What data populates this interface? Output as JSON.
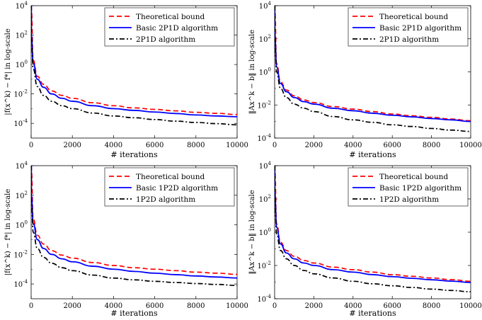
{
  "chart_data": [
    {
      "type": "line",
      "panel": "top-left",
      "xlabel": "# iterations",
      "ylabel": "|f(x^k) − f*| in log-scale",
      "xlim": [
        0,
        10000
      ],
      "ylim_log10": [
        -5,
        4
      ],
      "x_ticks": [
        0,
        2000,
        4000,
        6000,
        8000,
        10000
      ],
      "y_tick_exponents": [
        -4,
        -2,
        0,
        2,
        4
      ],
      "legend_position": "top-right",
      "series": [
        {
          "name": "Theoretical bound",
          "color": "#ff0000",
          "style": "dashed",
          "x": [
            10,
            100,
            300,
            600,
            1000,
            1500,
            2000,
            3000,
            4000,
            5000,
            6000,
            7000,
            8000,
            9000,
            10000
          ],
          "log10_y": [
            3.7,
            0.3,
            -0.8,
            -1.35,
            -1.8,
            -2.1,
            -2.3,
            -2.6,
            -2.8,
            -2.95,
            -3.05,
            -3.15,
            -3.25,
            -3.32,
            -3.4
          ]
        },
        {
          "name": "Basic 2P1D algorithm",
          "color": "#0000ff",
          "style": "solid",
          "x": [
            10,
            100,
            300,
            600,
            1000,
            1500,
            2000,
            3000,
            4000,
            5000,
            6000,
            7000,
            8000,
            9000,
            10000
          ],
          "log10_y": [
            2.0,
            0.1,
            -1.0,
            -1.55,
            -2.0,
            -2.3,
            -2.5,
            -2.8,
            -3.0,
            -3.12,
            -3.23,
            -3.33,
            -3.43,
            -3.5,
            -3.55
          ]
        },
        {
          "name": "2P1D algorithm",
          "color": "#000000",
          "style": "dashdot",
          "x": [
            10,
            100,
            300,
            600,
            1000,
            1500,
            2000,
            3000,
            4000,
            5000,
            6000,
            7000,
            8000,
            9000,
            10000
          ],
          "log10_y": [
            1.8,
            -0.3,
            -1.5,
            -2.1,
            -2.5,
            -2.8,
            -3.0,
            -3.3,
            -3.5,
            -3.62,
            -3.74,
            -3.85,
            -3.94,
            -4.02,
            -4.1
          ]
        }
      ]
    },
    {
      "type": "line",
      "panel": "top-right",
      "xlabel": "# iterations",
      "ylabel": "‖Ax^k − b‖ in log-scale",
      "xlim": [
        0,
        10000
      ],
      "ylim_log10": [
        -4,
        4
      ],
      "x_ticks": [
        0,
        2000,
        4000,
        6000,
        8000,
        10000
      ],
      "y_tick_exponents": [
        -4,
        -2,
        0,
        2,
        4
      ],
      "legend_position": "top-right",
      "series": [
        {
          "name": "Theoretical bound",
          "color": "#ff0000",
          "style": "dashed",
          "x": [
            10,
            100,
            300,
            600,
            1000,
            1500,
            2000,
            3000,
            4000,
            5000,
            6000,
            7000,
            8000,
            9000,
            10000
          ],
          "log10_y": [
            3.8,
            0.5,
            -0.6,
            -1.1,
            -1.45,
            -1.7,
            -1.85,
            -2.1,
            -2.25,
            -2.4,
            -2.55,
            -2.65,
            -2.75,
            -2.85,
            -2.95
          ]
        },
        {
          "name": "Basic 2P1D algorithm",
          "color": "#0000ff",
          "style": "solid",
          "x": [
            10,
            100,
            300,
            600,
            1000,
            1500,
            2000,
            3000,
            4000,
            5000,
            6000,
            7000,
            8000,
            9000,
            10000
          ],
          "log10_y": [
            2.3,
            0.3,
            -0.7,
            -1.2,
            -1.55,
            -1.8,
            -1.95,
            -2.2,
            -2.35,
            -2.5,
            -2.62,
            -2.72,
            -2.82,
            -2.9,
            -3.0
          ]
        },
        {
          "name": "2P1D algorithm",
          "color": "#000000",
          "style": "dashdot",
          "x": [
            10,
            100,
            300,
            600,
            1000,
            1500,
            2000,
            3000,
            4000,
            5000,
            6000,
            7000,
            8000,
            9000,
            10000
          ],
          "log10_y": [
            2.2,
            0.0,
            -1.0,
            -1.55,
            -1.95,
            -2.2,
            -2.4,
            -2.7,
            -2.9,
            -3.05,
            -3.2,
            -3.3,
            -3.42,
            -3.52,
            -3.6
          ]
        }
      ]
    },
    {
      "type": "line",
      "panel": "bottom-left",
      "xlabel": "# iterations",
      "ylabel": "|f(x^k) − f*| in log-scale",
      "xlim": [
        0,
        10000
      ],
      "ylim_log10": [
        -5,
        4
      ],
      "x_ticks": [
        0,
        2000,
        4000,
        6000,
        8000,
        10000
      ],
      "y_tick_exponents": [
        -4,
        -2,
        0,
        2,
        4
      ],
      "legend_position": "top-right",
      "series": [
        {
          "name": "Theoretical bound",
          "color": "#ff0000",
          "style": "dashed",
          "x": [
            10,
            100,
            300,
            600,
            1000,
            1500,
            2000,
            3000,
            4000,
            5000,
            6000,
            7000,
            8000,
            9000,
            10000
          ],
          "log10_y": [
            3.7,
            0.4,
            -0.7,
            -1.3,
            -1.75,
            -2.05,
            -2.25,
            -2.55,
            -2.75,
            -2.9,
            -3.0,
            -3.1,
            -3.2,
            -3.27,
            -3.35
          ]
        },
        {
          "name": "Basic 1P2D algorithm",
          "color": "#0000ff",
          "style": "solid",
          "x": [
            10,
            100,
            300,
            600,
            1000,
            1500,
            2000,
            3000,
            4000,
            5000,
            6000,
            7000,
            8000,
            9000,
            10000
          ],
          "log10_y": [
            2.0,
            0.1,
            -1.0,
            -1.6,
            -2.0,
            -2.3,
            -2.5,
            -2.8,
            -3.0,
            -3.15,
            -3.27,
            -3.37,
            -3.46,
            -3.53,
            -3.6
          ]
        },
        {
          "name": "1P2D algorithm",
          "color": "#000000",
          "style": "dashdot",
          "x": [
            10,
            100,
            300,
            600,
            1000,
            1500,
            2000,
            3000,
            4000,
            5000,
            6000,
            7000,
            8000,
            9000,
            10000
          ],
          "log10_y": [
            1.6,
            -0.5,
            -1.6,
            -2.2,
            -2.6,
            -2.9,
            -3.1,
            -3.4,
            -3.6,
            -3.72,
            -3.82,
            -3.9,
            -3.97,
            -4.03,
            -4.1
          ]
        }
      ]
    },
    {
      "type": "line",
      "panel": "bottom-right",
      "xlabel": "# iterations",
      "ylabel": "‖Ax^k − b‖ in log-scale",
      "xlim": [
        0,
        10000
      ],
      "ylim_log10": [
        -4,
        4
      ],
      "x_ticks": [
        0,
        2000,
        4000,
        6000,
        8000,
        10000
      ],
      "y_tick_exponents": [
        -4,
        -2,
        0,
        2,
        4
      ],
      "legend_position": "top-right",
      "series": [
        {
          "name": "Theoretical bound",
          "color": "#ff0000",
          "style": "dashed",
          "x": [
            10,
            100,
            300,
            600,
            1000,
            1500,
            2000,
            3000,
            4000,
            5000,
            6000,
            7000,
            8000,
            9000,
            10000
          ],
          "log10_y": [
            3.8,
            0.5,
            -0.6,
            -1.1,
            -1.45,
            -1.7,
            -1.85,
            -2.1,
            -2.25,
            -2.4,
            -2.55,
            -2.65,
            -2.75,
            -2.85,
            -2.95
          ]
        },
        {
          "name": "Basic 1P2D algorithm",
          "color": "#0000ff",
          "style": "solid",
          "x": [
            10,
            100,
            300,
            600,
            1000,
            1500,
            2000,
            3000,
            4000,
            5000,
            6000,
            7000,
            8000,
            9000,
            10000
          ],
          "log10_y": [
            2.4,
            0.3,
            -0.7,
            -1.25,
            -1.6,
            -1.85,
            -2.0,
            -2.25,
            -2.4,
            -2.55,
            -2.67,
            -2.77,
            -2.86,
            -2.94,
            -3.02
          ]
        },
        {
          "name": "1P2D algorithm",
          "color": "#000000",
          "style": "dashdot",
          "x": [
            10,
            100,
            300,
            600,
            1000,
            1500,
            2000,
            3000,
            4000,
            5000,
            6000,
            7000,
            8000,
            9000,
            10000
          ],
          "log10_y": [
            2.2,
            -0.1,
            -1.1,
            -1.6,
            -2.0,
            -2.3,
            -2.5,
            -2.75,
            -2.95,
            -3.1,
            -3.22,
            -3.32,
            -3.42,
            -3.5,
            -3.58
          ]
        }
      ]
    }
  ]
}
